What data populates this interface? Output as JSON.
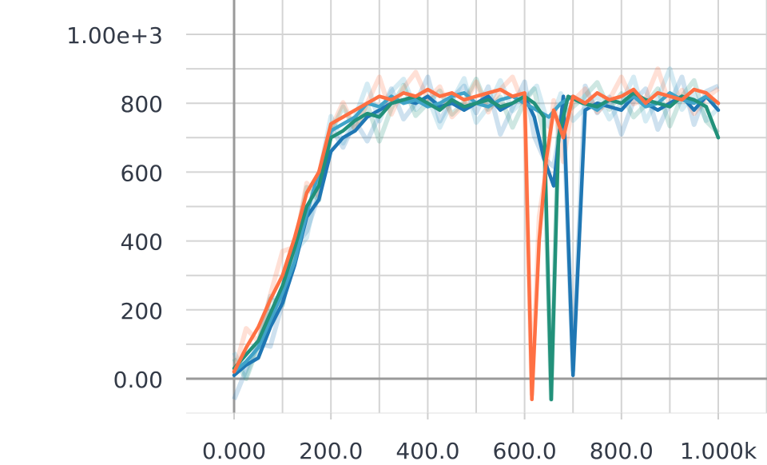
{
  "chart_data": {
    "type": "line",
    "title": "",
    "xlabel": "",
    "ylabel": "",
    "xlim": [
      -100,
      1100
    ],
    "ylim": [
      -100,
      1070
    ],
    "x_ticks": [
      {
        "value": 0,
        "label": "0.000"
      },
      {
        "value": 200,
        "label": "200.0"
      },
      {
        "value": 400,
        "label": "400.0"
      },
      {
        "value": 600,
        "label": "600.0"
      },
      {
        "value": 800,
        "label": "800.0"
      },
      {
        "value": 1000,
        "label": "1.000k"
      }
    ],
    "y_ticks": [
      {
        "value": 0,
        "label": "0.00"
      },
      {
        "value": 200,
        "label": "200"
      },
      {
        "value": 400,
        "label": "400"
      },
      {
        "value": 600,
        "label": "600"
      },
      {
        "value": 800,
        "label": "800"
      },
      {
        "value": 1000,
        "label": "1.00e+3"
      }
    ],
    "grid": true,
    "legend": "none",
    "series": [
      {
        "color": "#1f77b4",
        "x": [
          0,
          25,
          50,
          75,
          100,
          125,
          150,
          175,
          200,
          225,
          250,
          275,
          300,
          325,
          350,
          375,
          400,
          425,
          450,
          475,
          500,
          525,
          550,
          575,
          600,
          620,
          640,
          660,
          680,
          700,
          725,
          750,
          775,
          800,
          825,
          850,
          875,
          900,
          925,
          950,
          975,
          1000
        ],
        "y": [
          10,
          40,
          60,
          150,
          220,
          330,
          470,
          520,
          660,
          700,
          720,
          760,
          780,
          800,
          810,
          800,
          820,
          790,
          800,
          780,
          800,
          820,
          780,
          800,
          820,
          760,
          640,
          560,
          820,
          10,
          780,
          800,
          790,
          780,
          820,
          800,
          780,
          800,
          820,
          780,
          820,
          780
        ]
      },
      {
        "color": "#40a3c8",
        "x": [
          0,
          25,
          50,
          75,
          100,
          125,
          150,
          175,
          200,
          225,
          250,
          275,
          300,
          325,
          350,
          375,
          400,
          425,
          450,
          475,
          500,
          525,
          550,
          575,
          600,
          625,
          650,
          675,
          700,
          725,
          750,
          775,
          800,
          825,
          850,
          875,
          900,
          925,
          950,
          975,
          1000
        ],
        "y": [
          20,
          50,
          90,
          170,
          250,
          340,
          480,
          600,
          720,
          740,
          760,
          800,
          790,
          820,
          800,
          810,
          790,
          800,
          820,
          830,
          800,
          790,
          810,
          820,
          800,
          780,
          760,
          800,
          820,
          800,
          780,
          810,
          800,
          820,
          790,
          800,
          830,
          810,
          800,
          820,
          800
        ]
      },
      {
        "color": "#22917a",
        "x": [
          0,
          25,
          50,
          75,
          100,
          125,
          150,
          175,
          200,
          225,
          250,
          275,
          300,
          325,
          350,
          375,
          400,
          425,
          450,
          475,
          500,
          525,
          550,
          575,
          600,
          620,
          640,
          655,
          670,
          690,
          720,
          750,
          775,
          800,
          825,
          850,
          875,
          900,
          925,
          950,
          975,
          1000
        ],
        "y": [
          30,
          70,
          110,
          190,
          270,
          380,
          500,
          560,
          700,
          720,
          750,
          770,
          760,
          800,
          810,
          820,
          800,
          780,
          810,
          790,
          800,
          810,
          790,
          800,
          820,
          800,
          760,
          -60,
          700,
          820,
          800,
          790,
          810,
          800,
          830,
          810,
          800,
          790,
          820,
          810,
          790,
          700
        ]
      },
      {
        "color": "#ff7043",
        "x": [
          0,
          25,
          50,
          75,
          100,
          125,
          150,
          175,
          200,
          225,
          250,
          275,
          300,
          325,
          350,
          375,
          400,
          425,
          450,
          475,
          500,
          525,
          550,
          575,
          600,
          615,
          630,
          645,
          660,
          680,
          700,
          725,
          750,
          775,
          800,
          825,
          850,
          875,
          900,
          925,
          950,
          975,
          1000
        ],
        "y": [
          20,
          90,
          150,
          230,
          300,
          410,
          540,
          600,
          740,
          760,
          780,
          800,
          820,
          810,
          830,
          820,
          840,
          820,
          830,
          810,
          820,
          830,
          840,
          820,
          830,
          -60,
          400,
          640,
          780,
          700,
          820,
          800,
          830,
          810,
          820,
          840,
          800,
          830,
          820,
          810,
          840,
          830,
          800
        ]
      }
    ]
  }
}
